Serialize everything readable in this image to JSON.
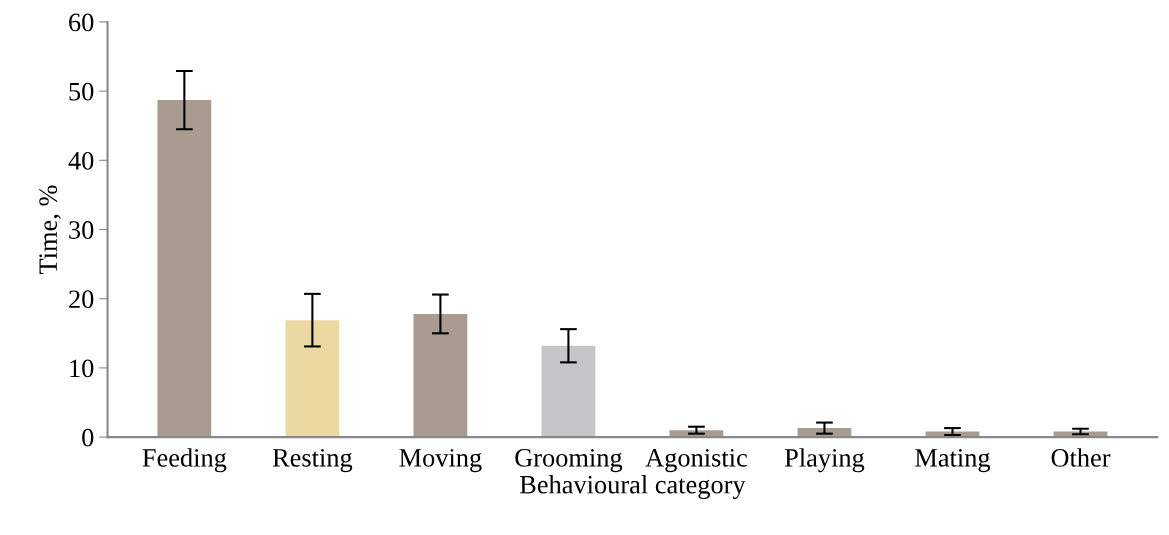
{
  "chart_data": {
    "type": "bar",
    "xlabel": "Behavioural category",
    "ylabel": "Time, %",
    "categories": [
      "Feeding",
      "Resting",
      "Moving",
      "Grooming",
      "Agonistic",
      "Playing",
      "Mating",
      "Other"
    ],
    "values": [
      48.7,
      16.9,
      17.8,
      13.2,
      1.0,
      1.3,
      0.8,
      0.8
    ],
    "errors": [
      4.2,
      3.8,
      2.8,
      2.4,
      0.5,
      0.8,
      0.5,
      0.4
    ],
    "colors": [
      "#a89b8f",
      "#ecd9a2",
      "#a89b8f",
      "#c6c6c8",
      "#a89b8f",
      "#a89b8f",
      "#a89b8f",
      "#a89b8f"
    ],
    "ylim": [
      0,
      60
    ],
    "yticks": [
      0,
      10,
      20,
      30,
      40,
      50,
      60
    ],
    "grid": false,
    "legend": false
  }
}
